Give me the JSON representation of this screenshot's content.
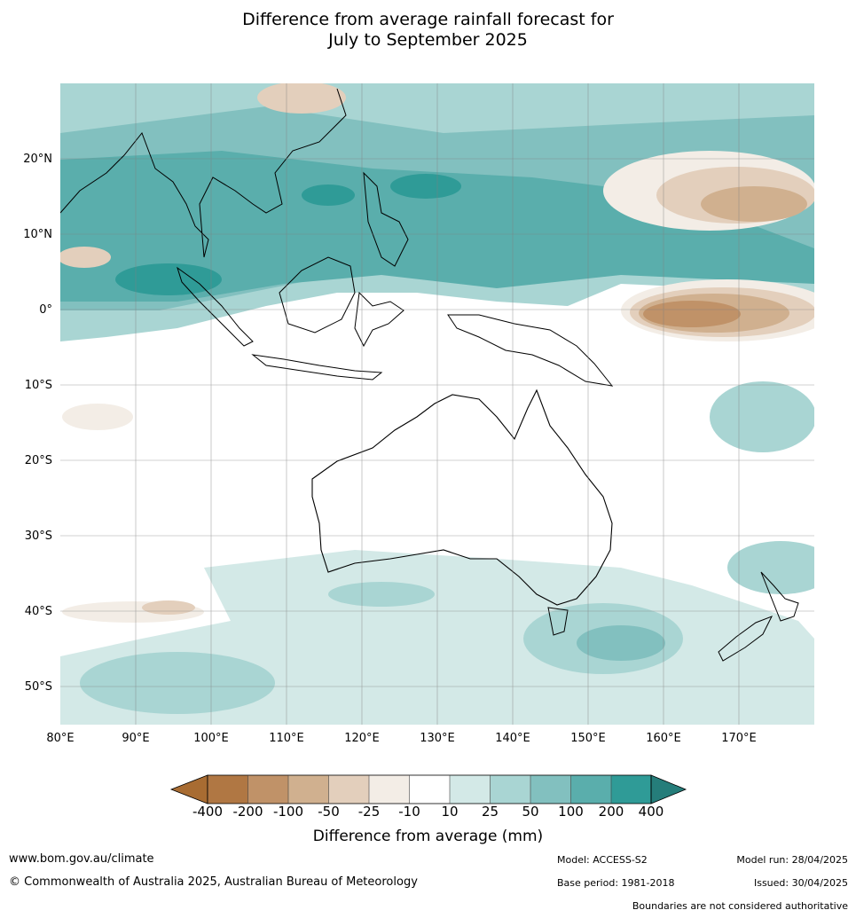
{
  "title_line1": "Difference from average rainfall forecast for",
  "title_line2": "July to September 2025",
  "lon_labels": [
    "80°E",
    "90°E",
    "100°E",
    "110°E",
    "120°E",
    "130°E",
    "140°E",
    "150°E",
    "160°E",
    "170°E"
  ],
  "lat_labels": [
    "20°N",
    "10°N",
    "0°",
    "10°S",
    "20°S",
    "30°S",
    "40°S",
    "50°S"
  ],
  "colorbar": {
    "title": "Difference from average (mm)",
    "ticks": [
      "-400",
      "-200",
      "-100",
      "-50",
      "-25",
      "-10",
      "10",
      "25",
      "50",
      "100",
      "200",
      "400"
    ],
    "colors": [
      "#a86c32",
      "#b07743",
      "#c09268",
      "#d0b08f",
      "#e3cfbc",
      "#f3ede6",
      "#ffffff",
      "#d3e9e7",
      "#a9d5d3",
      "#82c0bf",
      "#5aaeac",
      "#2f9b97",
      "#257d7a"
    ]
  },
  "footer": {
    "url": "www.bom.gov.au/climate",
    "copyright": "© Commonwealth of Australia 2025, Australian Bureau of Meteorology",
    "model": "Model: ACCESS-S2",
    "base_period": "Base period: 1981-2018",
    "model_run": "Model run: 28/04/2025",
    "issued": "Issued: 30/04/2025",
    "disclaimer": "Boundaries are not considered authoritative"
  }
}
